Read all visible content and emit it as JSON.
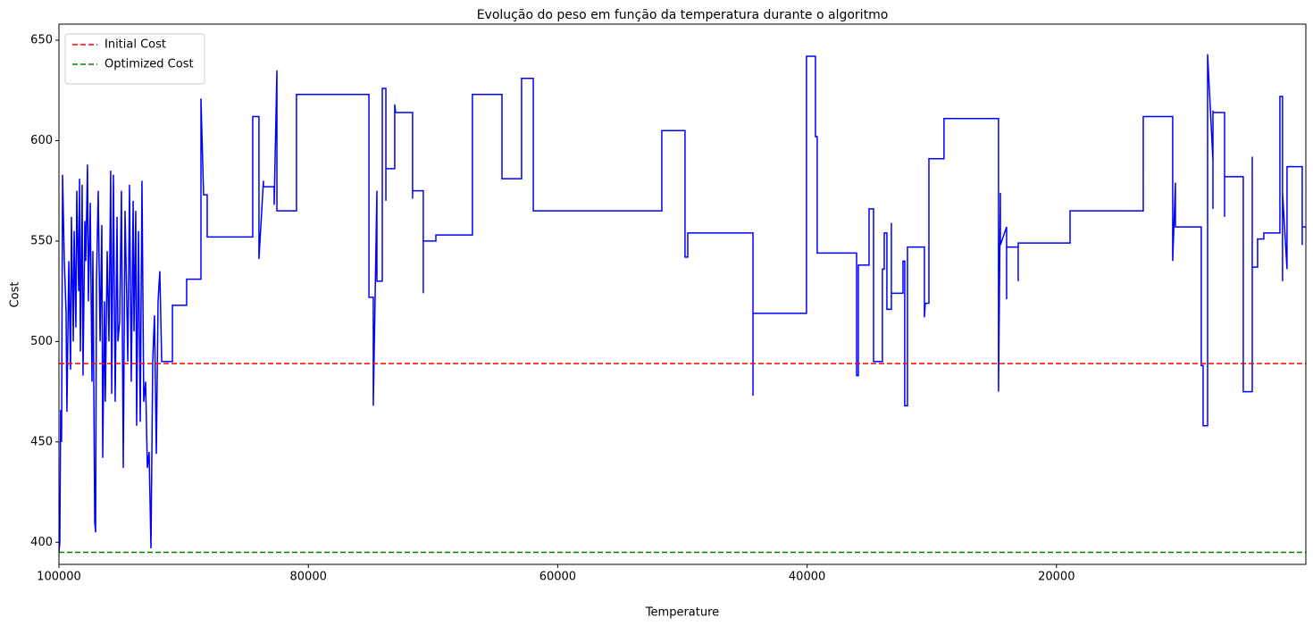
{
  "chart_data": {
    "type": "line",
    "title": "Evolução do peso em função da temperatura durante o algoritmo",
    "x_label": "Temperature",
    "y_label": "Cost",
    "xlim": [
      100000,
      0
    ],
    "ylim": [
      389,
      658
    ],
    "xticks": [
      100000,
      80000,
      60000,
      40000,
      20000
    ],
    "yticks": [
      400,
      450,
      500,
      550,
      600,
      650
    ],
    "legend": "upper-left",
    "series": [
      {
        "name": "Cost",
        "color": "#0000ff",
        "x": [
          100000,
          99930,
          99860,
          99790,
          99710,
          99570,
          99430,
          99360,
          99210,
          99070,
          99000,
          98850,
          98780,
          98640,
          98570,
          98420,
          98350,
          98280,
          98140,
          98070,
          97920,
          97850,
          97710,
          97640,
          97490,
          97350,
          97280,
          97130,
          97060,
          96990,
          96850,
          96700,
          96560,
          96490,
          96350,
          96280,
          96130,
          95990,
          95850,
          95770,
          95630,
          95490,
          95340,
          95270,
          95130,
          94990,
          94840,
          94700,
          94560,
          94480,
          94340,
          94200,
          94050,
          93980,
          93840,
          93770,
          93620,
          93480,
          93340,
          93200,
          93050,
          92910,
          92770,
          92620,
          92480,
          92340,
          92190,
          92050,
          91910,
          91760,
          91620,
          90900,
          90900,
          89760,
          89760,
          88610,
          88610,
          88400,
          88110,
          88110,
          84460,
          84460,
          83960,
          83960,
          83600,
          83600,
          82740,
          82740,
          82520,
          82520,
          80950,
          80950,
          75140,
          75140,
          74790,
          74790,
          74500,
          74500,
          74070,
          74070,
          73780,
          73780,
          73780,
          73070,
          73070,
          73000,
          71640,
          71640,
          71640,
          70780,
          70780,
          70780,
          69770,
          69770,
          66840,
          66840,
          64470,
          64470,
          62900,
          62900,
          61960,
          61960,
          51650,
          51650,
          49790,
          49790,
          49570,
          49570,
          44340,
          44340,
          44340,
          40050,
          40050,
          39330,
          39330,
          39190,
          39190,
          36030,
          36030,
          35890,
          35890,
          35030,
          35030,
          34670,
          34670,
          33960,
          33960,
          33810,
          33810,
          33600,
          33600,
          33240,
          33240,
          33240,
          32310,
          32310,
          32170,
          32170,
          31950,
          31950,
          30590,
          30590,
          30520,
          30230,
          30230,
          29020,
          29020,
          24650,
          24650,
          24500,
          24500,
          24000,
          24000,
          24000,
          23070,
          23070,
          23070,
          18910,
          18910,
          13040,
          13040,
          13040,
          10680,
          10680,
          10460,
          10460,
          8390,
          8390,
          8240,
          8240,
          7880,
          7880,
          7450,
          7450,
          7450,
          7450,
          6520,
          6520,
          6520,
          5020,
          5020,
          4300,
          4300,
          4300,
          3870,
          3870,
          3370,
          3370,
          2080,
          2080,
          1870,
          1870,
          1870,
          1510,
          1510,
          290,
          290,
          290,
          0
        ],
        "values": [
          395,
          400,
          466,
          450,
          583,
          540,
          515,
          465,
          540,
          486,
          562,
          500,
          555,
          507,
          575,
          525,
          581,
          495,
          578,
          483,
          560,
          540,
          588,
          520,
          569,
          480,
          545,
          410,
          405,
          530,
          575,
          500,
          558,
          442,
          520,
          470,
          545,
          500,
          585,
          474,
          583,
          470,
          562,
          500,
          510,
          575,
          437,
          565,
          520,
          490,
          578,
          480,
          570,
          505,
          565,
          458,
          555,
          460,
          580,
          470,
          480,
          437,
          445,
          397,
          490,
          513,
          444,
          520,
          535,
          490,
          490,
          490,
          518,
          518,
          531,
          531,
          621,
          573,
          573,
          552,
          552,
          612,
          612,
          541,
          580,
          577,
          577,
          568,
          635,
          565,
          565,
          623,
          623,
          522,
          522,
          468,
          575,
          530,
          530,
          626,
          626,
          570,
          586,
          586,
          618,
          614,
          614,
          571,
          575,
          575,
          524,
          550,
          550,
          553,
          553,
          623,
          623,
          581,
          581,
          631,
          631,
          565,
          565,
          605,
          605,
          542,
          542,
          554,
          554,
          473,
          514,
          514,
          642,
          642,
          602,
          602,
          544,
          544,
          483,
          483,
          538,
          538,
          566,
          566,
          490,
          490,
          536,
          536,
          554,
          554,
          516,
          516,
          559,
          524,
          524,
          540,
          540,
          468,
          468,
          547,
          547,
          512,
          519,
          519,
          591,
          591,
          611,
          611,
          475,
          574,
          548,
          557,
          521,
          547,
          547,
          530,
          549,
          549,
          565,
          565,
          595,
          612,
          612,
          540,
          579,
          557,
          557,
          488,
          488,
          458,
          458,
          643,
          590,
          615,
          566,
          614,
          614,
          562,
          582,
          582,
          475,
          475,
          592,
          537,
          537,
          551,
          551,
          554,
          554,
          622,
          622,
          530,
          574,
          536,
          587,
          587,
          548,
          557,
          557
        ]
      }
    ],
    "reference_lines": [
      {
        "name": "Initial Cost",
        "color": "#ff0000",
        "value": 489
      },
      {
        "name": "Optimized Cost",
        "color": "#008000",
        "value": 395
      }
    ]
  }
}
